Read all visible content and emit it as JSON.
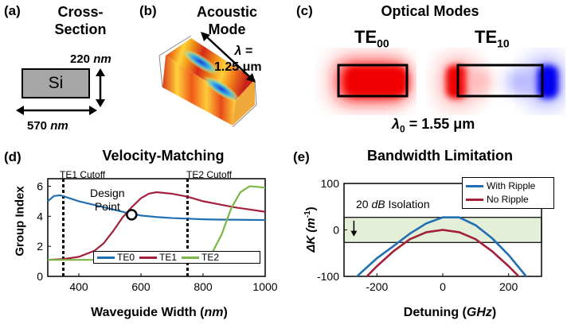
{
  "panel_a": {
    "label": "(a)",
    "title_line1": "Cross-",
    "title_line2": "Section",
    "material": "Si",
    "height_value": "220",
    "height_unit": "nm",
    "width_value": "570",
    "width_unit": "nm"
  },
  "panel_b": {
    "label": "(b)",
    "title_line1": "Acoustic",
    "title_line2": "Mode",
    "lambda_line1": "λ =",
    "lambda_line2": "1.25 μm"
  },
  "panel_c": {
    "label": "(c)",
    "title": "Optical Modes",
    "mode1_base": "TE",
    "mode1_sub": "00",
    "mode2_base": "TE",
    "mode2_sub": "10",
    "lambda_text": "λ",
    "lambda_sub": "0",
    "lambda_value": " = 1.55 μm"
  },
  "panel_d": {
    "label": "(d)",
    "title": "Velocity-Matching",
    "cutoff1": "TE1 Cutoff",
    "cutoff2": "TE2 Cutoff",
    "annotation_line1": "Design",
    "annotation_line2": "Point",
    "ylabel": "Group Index",
    "xlabel_prefix": "Waveguide Width (",
    "xlabel_unit": "nm",
    "xlabel_suffix": ")",
    "legend": [
      "TE0",
      "TE1",
      "TE2"
    ]
  },
  "panel_e": {
    "label": "(e)",
    "title": "Bandwidth Limitation",
    "ylabel_prefix": "ΔK (",
    "ylabel_unit": "m",
    "ylabel_sup": "-1",
    "ylabel_suffix": ")",
    "xlabel_prefix": "Detuning (",
    "xlabel_unit": "GHz",
    "xlabel_suffix": ")",
    "isolation_value": "20",
    "isolation_unit": "dB",
    "isolation_word": " Isolation",
    "legend": [
      "With Ripple",
      "No Ripple"
    ]
  },
  "chart_data": [
    {
      "type": "line",
      "xlim": [
        300,
        1000
      ],
      "ylim": [
        0,
        6.5
      ],
      "xticks": [
        400,
        600,
        800,
        1000
      ],
      "yticks": [
        0,
        2,
        4,
        6
      ],
      "cutoffs": [
        350,
        750
      ],
      "design_point": {
        "x": 570,
        "y": 4.1
      },
      "grid": false,
      "legend_position": "bottom",
      "series": [
        {
          "name": "TE0",
          "color": "#1f6fb2",
          "x": [
            300,
            320,
            340,
            370,
            400,
            450,
            500,
            550,
            600,
            650,
            700,
            750,
            800,
            850,
            900,
            950,
            1000
          ],
          "y": [
            5.0,
            5.35,
            5.4,
            5.2,
            5.0,
            4.75,
            4.5,
            4.25,
            4.05,
            3.95,
            3.88,
            3.84,
            3.8,
            3.78,
            3.77,
            3.76,
            3.75
          ]
        },
        {
          "name": "TE1",
          "color": "#a3203a",
          "x": [
            300,
            350,
            400,
            450,
            480,
            510,
            540,
            570,
            600,
            625,
            650,
            700,
            750,
            800,
            850,
            900,
            950,
            1000
          ],
          "y": [
            1.1,
            1.15,
            1.3,
            1.7,
            2.2,
            3.0,
            3.9,
            4.6,
            5.2,
            5.5,
            5.6,
            5.5,
            5.3,
            5.0,
            4.8,
            4.6,
            4.45,
            4.3
          ]
        },
        {
          "name": "TE2",
          "color": "#7ab648",
          "x": [
            300,
            400,
            500,
            600,
            700,
            750,
            800,
            830,
            860,
            890,
            920,
            950,
            980,
            1000
          ],
          "y": [
            1.1,
            1.1,
            1.1,
            1.1,
            1.1,
            1.12,
            1.2,
            1.6,
            2.8,
            4.5,
            5.6,
            6.0,
            5.95,
            5.9
          ]
        }
      ]
    },
    {
      "type": "line",
      "xlim": [
        -300,
        300
      ],
      "ylim": [
        -100,
        100
      ],
      "xticks": [
        -200,
        0,
        200
      ],
      "yticks": [
        -100,
        0,
        100
      ],
      "band": [
        -27,
        27
      ],
      "grid": false,
      "legend_position": "top-right",
      "series": [
        {
          "name": "With Ripple",
          "color": "#1f6fb2",
          "x": [
            -300,
            -250,
            -200,
            -150,
            -100,
            -50,
            0,
            50,
            100,
            150,
            200,
            250,
            280
          ],
          "y": [
            -127,
            -93,
            -61,
            -35,
            -8,
            14,
            27,
            27,
            10,
            -18,
            -54,
            -97,
            -124
          ]
        },
        {
          "name": "No Ripple",
          "color": "#a3203a",
          "x": [
            -260,
            -200,
            -150,
            -100,
            -50,
            0,
            50,
            100,
            150,
            200,
            260
          ],
          "y": [
            -121,
            -78,
            -46,
            -20,
            -5,
            0,
            -5,
            -20,
            -46,
            -78,
            -121
          ]
        }
      ]
    }
  ]
}
